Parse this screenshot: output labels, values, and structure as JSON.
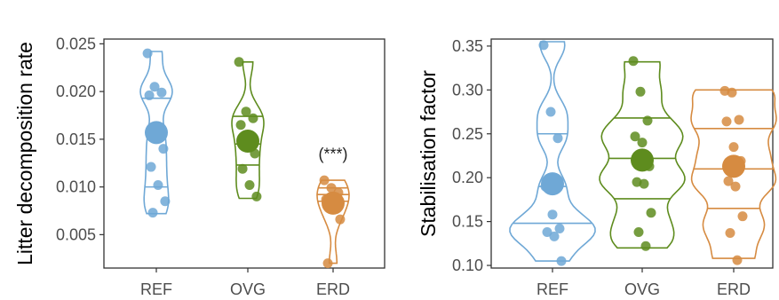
{
  "chart_data": [
    {
      "type": "violin",
      "ylabel": "Litter decomposition rate",
      "categories": [
        "REF",
        "OVG",
        "ERD"
      ],
      "ylim": [
        0.0015,
        0.0255
      ],
      "yticks": [
        "0.005",
        "0.010",
        "0.015",
        "0.020",
        "0.025"
      ],
      "grid": false,
      "series": [
        {
          "category": "REF",
          "color": "#6fa8d6",
          "points": [
            0.024,
            0.0205,
            0.0199,
            0.0196,
            0.016,
            0.014,
            0.0121,
            0.0102,
            0.0085,
            0.0073
          ],
          "mean": 0.0157,
          "quantiles": [
            0.01,
            0.0155,
            0.0193
          ],
          "range": [
            0.0072,
            0.0242
          ]
        },
        {
          "category": "OVG",
          "color": "#5e8c1e",
          "points": [
            0.0231,
            0.0179,
            0.0172,
            0.0165,
            0.0149,
            0.0135,
            0.0119,
            0.0102,
            0.009
          ],
          "mean": 0.0148,
          "quantiles": [
            0.0123,
            0.0145,
            0.0174
          ],
          "range": [
            0.0088,
            0.0231
          ]
        },
        {
          "category": "ERD",
          "color": "#d68b41",
          "points": [
            0.0107,
            0.0099,
            0.0094,
            0.0087,
            0.0078,
            0.0066,
            0.002
          ],
          "mean": 0.0083,
          "quantiles": [
            0.0085,
            0.0092,
            0.0099
          ],
          "range": [
            0.002,
            0.0107
          ]
        }
      ],
      "annotations": [
        {
          "category": "ERD",
          "text": "(***)",
          "y": 0.0129
        }
      ]
    },
    {
      "type": "violin",
      "ylabel": "Stabilisation factor",
      "categories": [
        "REF",
        "OVG",
        "ERD"
      ],
      "ylim": [
        0.097,
        0.358
      ],
      "yticks": [
        "0.10",
        "0.15",
        "0.20",
        "0.25",
        "0.30",
        "0.35"
      ],
      "grid": false,
      "series": [
        {
          "category": "REF",
          "color": "#6fa8d6",
          "points": [
            0.351,
            0.275,
            0.245,
            0.19,
            0.158,
            0.142,
            0.138,
            0.133,
            0.105
          ],
          "mean": 0.193,
          "quantiles": [
            0.148,
            0.19,
            0.25
          ],
          "range": [
            0.105,
            0.355
          ]
        },
        {
          "category": "OVG",
          "color": "#5e8c1e",
          "points": [
            0.333,
            0.298,
            0.265,
            0.247,
            0.24,
            0.213,
            0.195,
            0.193,
            0.16,
            0.138,
            0.122
          ],
          "mean": 0.22,
          "quantiles": [
            0.176,
            0.222,
            0.268
          ],
          "range": [
            0.12,
            0.332
          ]
        },
        {
          "category": "ERD",
          "color": "#d68b41",
          "points": [
            0.299,
            0.297,
            0.266,
            0.264,
            0.235,
            0.219,
            0.196,
            0.19,
            0.156,
            0.137,
            0.106
          ],
          "mean": 0.213,
          "quantiles": [
            0.165,
            0.21,
            0.256
          ],
          "range": [
            0.108,
            0.3
          ]
        }
      ],
      "annotations": []
    }
  ]
}
